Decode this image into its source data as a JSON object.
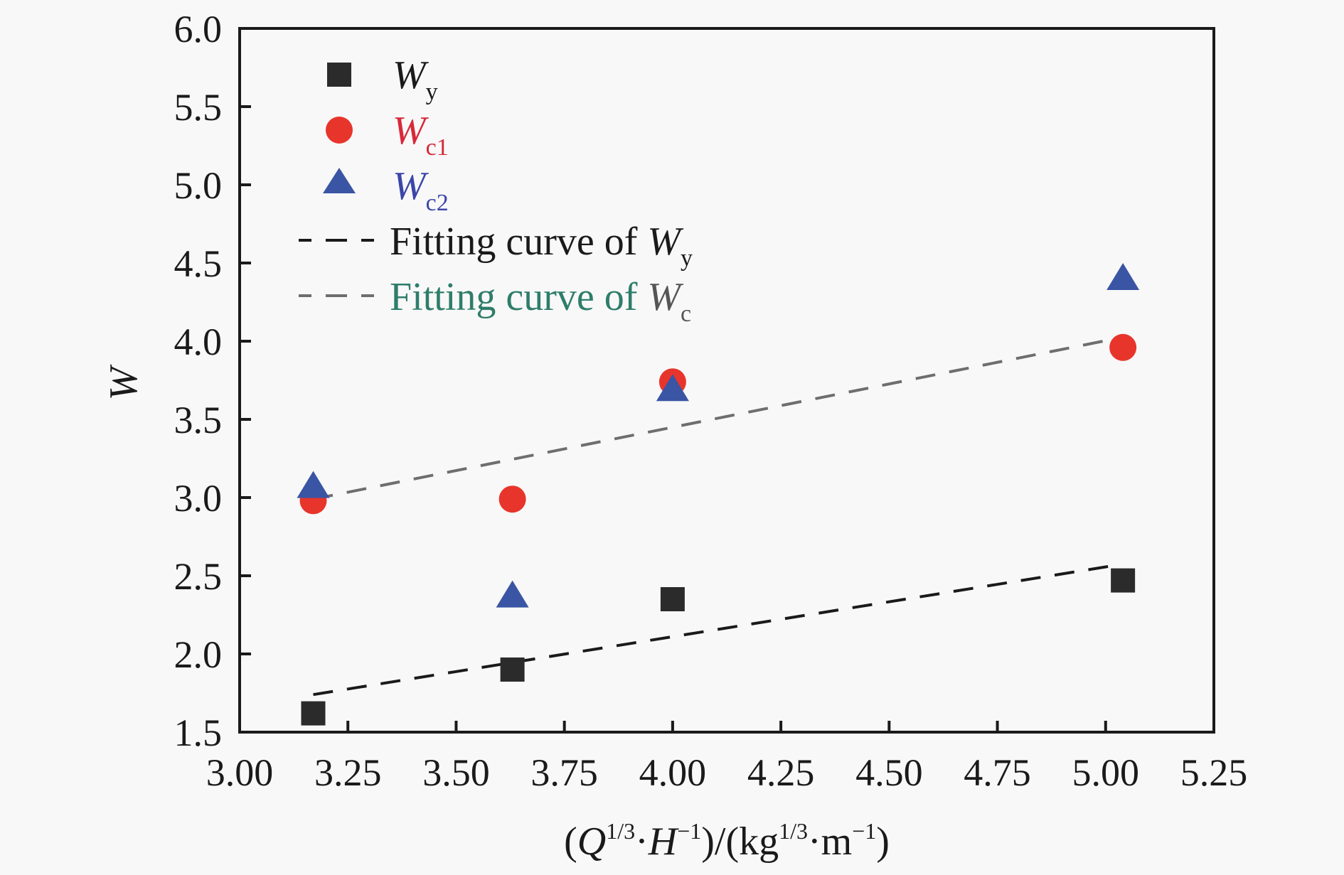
{
  "colors": {
    "background": "#f8f8f8",
    "axis": "#1a1a1a",
    "wy": "#2b2b2b",
    "wc1": "#e8352b",
    "wc2": "#3a55a4",
    "fit_wy": "#1a1a1a",
    "fit_wc": "#6e6e6e",
    "fit_wc_text": "#2e7d6a",
    "wc1_text": "#d8283a",
    "wc2_text": "#3b46a8"
  },
  "chart_data": {
    "type": "scatter",
    "title": "",
    "xlabel": {
      "open": "(",
      "q": "Q",
      "q_sup": "1/3",
      "dot": "·",
      "h": "H",
      "h_sup": "−1",
      "mid": ")/(kg",
      "kg_sup": "1/3",
      "dot2": "·m",
      "m_sup": "−1",
      "close": ")"
    },
    "ylabel": "W",
    "xlim": [
      3.0,
      5.25
    ],
    "ylim": [
      1.5,
      6.0
    ],
    "xticks": [
      "3.00",
      "3.25",
      "3.50",
      "3.75",
      "4.00",
      "4.25",
      "4.50",
      "4.75",
      "5.00",
      "5.25"
    ],
    "yticks": [
      "1.5",
      "2.0",
      "2.5",
      "3.0",
      "3.5",
      "4.0",
      "4.5",
      "5.0",
      "5.5",
      "6.0"
    ],
    "grid": false,
    "legend_position": "top-left",
    "x": [
      3.17,
      3.63,
      4.0,
      5.04
    ],
    "series": [
      {
        "name": "Wy",
        "label_main": "W",
        "label_sub": "y",
        "marker": "square",
        "values": [
          1.62,
          1.9,
          2.35,
          2.47
        ]
      },
      {
        "name": "Wc1",
        "label_main": "W",
        "label_sub": "c1",
        "marker": "circle",
        "values": [
          2.98,
          2.99,
          3.74,
          3.96
        ]
      },
      {
        "name": "Wc2",
        "label_main": "W",
        "label_sub": "c2",
        "marker": "triangle",
        "values": [
          3.07,
          2.37,
          3.69,
          4.4
        ]
      }
    ],
    "fits": [
      {
        "name": "Fitting curve of Wy",
        "label_prefix": "Fitting curve of ",
        "label_main": "W",
        "label_sub": "y",
        "x": [
          3.17,
          5.03
        ],
        "y": [
          1.74,
          2.57
        ],
        "style": "dashed"
      },
      {
        "name": "Fitting curve of Wc",
        "label_prefix": "Fitting curve of ",
        "label_main": "W",
        "label_sub": "c",
        "x": [
          3.17,
          5.03
        ],
        "y": [
          2.99,
          4.02
        ],
        "style": "dashed"
      }
    ]
  }
}
